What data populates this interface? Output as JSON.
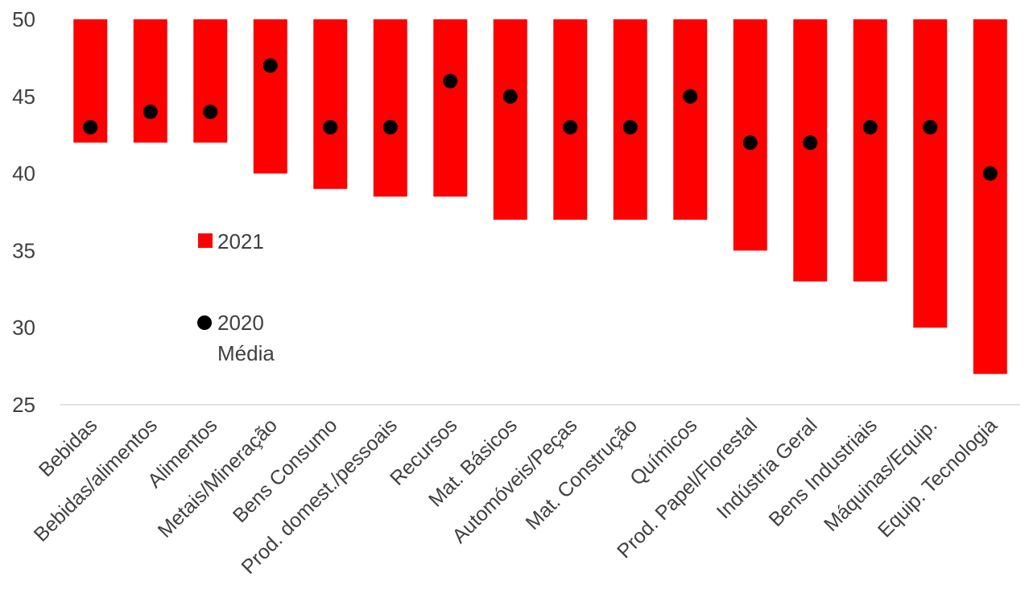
{
  "chart_data": {
    "type": "bar",
    "categories": [
      "Bebidas",
      "Bebidas/alimentos",
      "Alimentos",
      "Metais/Mineração",
      "Bens Consumo",
      "Prod. domest./pessoais",
      "Recursos",
      "Mat. Básicos",
      "Automóveis/Peças",
      "Mat. Construção",
      "Químicos",
      "Prod. Papel/Florestal",
      "Indústria Geral",
      "Bens Industriais",
      "Máquinas/Equip.",
      "Equip. Tecnologia"
    ],
    "series": [
      {
        "name": "2021",
        "kind": "floating-bar",
        "color": "#ff0000",
        "low": [
          42,
          42,
          42,
          40,
          39,
          38.5,
          38.5,
          37,
          37,
          37,
          37,
          35,
          33,
          33,
          30,
          27
        ],
        "high": [
          50,
          50,
          50,
          50,
          50,
          50,
          50,
          50,
          50,
          50,
          50,
          50,
          50,
          50,
          50,
          50
        ]
      },
      {
        "name": "2020 Média",
        "kind": "dot",
        "color": "#000000",
        "values": [
          43,
          44,
          44,
          47,
          43,
          43,
          46,
          45,
          43,
          43,
          45,
          42,
          42,
          43,
          43,
          40
        ]
      }
    ],
    "yticks": [
      25,
      30,
      35,
      40,
      45,
      50
    ],
    "ylim": [
      25,
      50
    ],
    "grid": false,
    "legend_placement": "left-middle",
    "legend": [
      {
        "label": "2021",
        "marker": "square",
        "color": "#ff0000"
      },
      {
        "label_lines": [
          "2020",
          "Média"
        ],
        "marker": "circle",
        "color": "#000000"
      }
    ],
    "title": "",
    "xlabel": "",
    "ylabel": ""
  }
}
